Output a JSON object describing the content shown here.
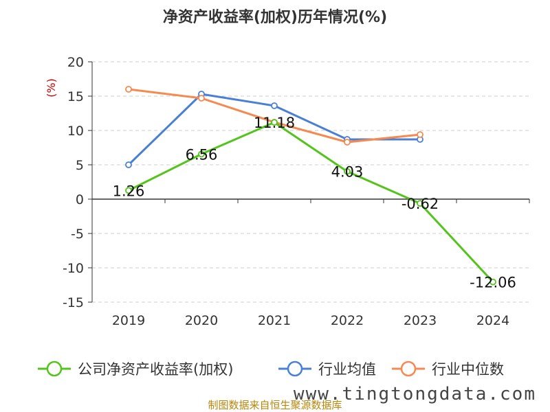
{
  "chart_data": {
    "type": "line",
    "title": "净资产收益率(加权)历年情况(%)",
    "ylabel": "(%)",
    "xlabel": "",
    "categories": [
      "2019",
      "2020",
      "2021",
      "2022",
      "2023",
      "2024"
    ],
    "ylim": [
      -15,
      20
    ],
    "yticks": [
      20,
      15,
      10,
      5,
      0,
      -5,
      -10,
      -15
    ],
    "grid": true,
    "legend_position": "bottom",
    "series": [
      {
        "name": "公司净资产收益率(加权)",
        "values": [
          1.26,
          6.56,
          11.18,
          4.03,
          -0.62,
          -12.06
        ],
        "color": "#52c41a",
        "labels": [
          "1.26",
          "6.56",
          "11.18",
          "4.03",
          "-0.62",
          "-12.06"
        ]
      },
      {
        "name": "行业均值",
        "values": [
          5.0,
          15.3,
          13.6,
          8.7,
          8.7,
          null
        ],
        "color": "#4a7fd6"
      },
      {
        "name": "行业中位数",
        "values": [
          16.0,
          14.7,
          11.2,
          8.3,
          9.4,
          null
        ],
        "color": "#f5894f"
      }
    ]
  },
  "source": "制图数据来自恒生聚源数据库",
  "watermark": "www.tingtongdata.com"
}
